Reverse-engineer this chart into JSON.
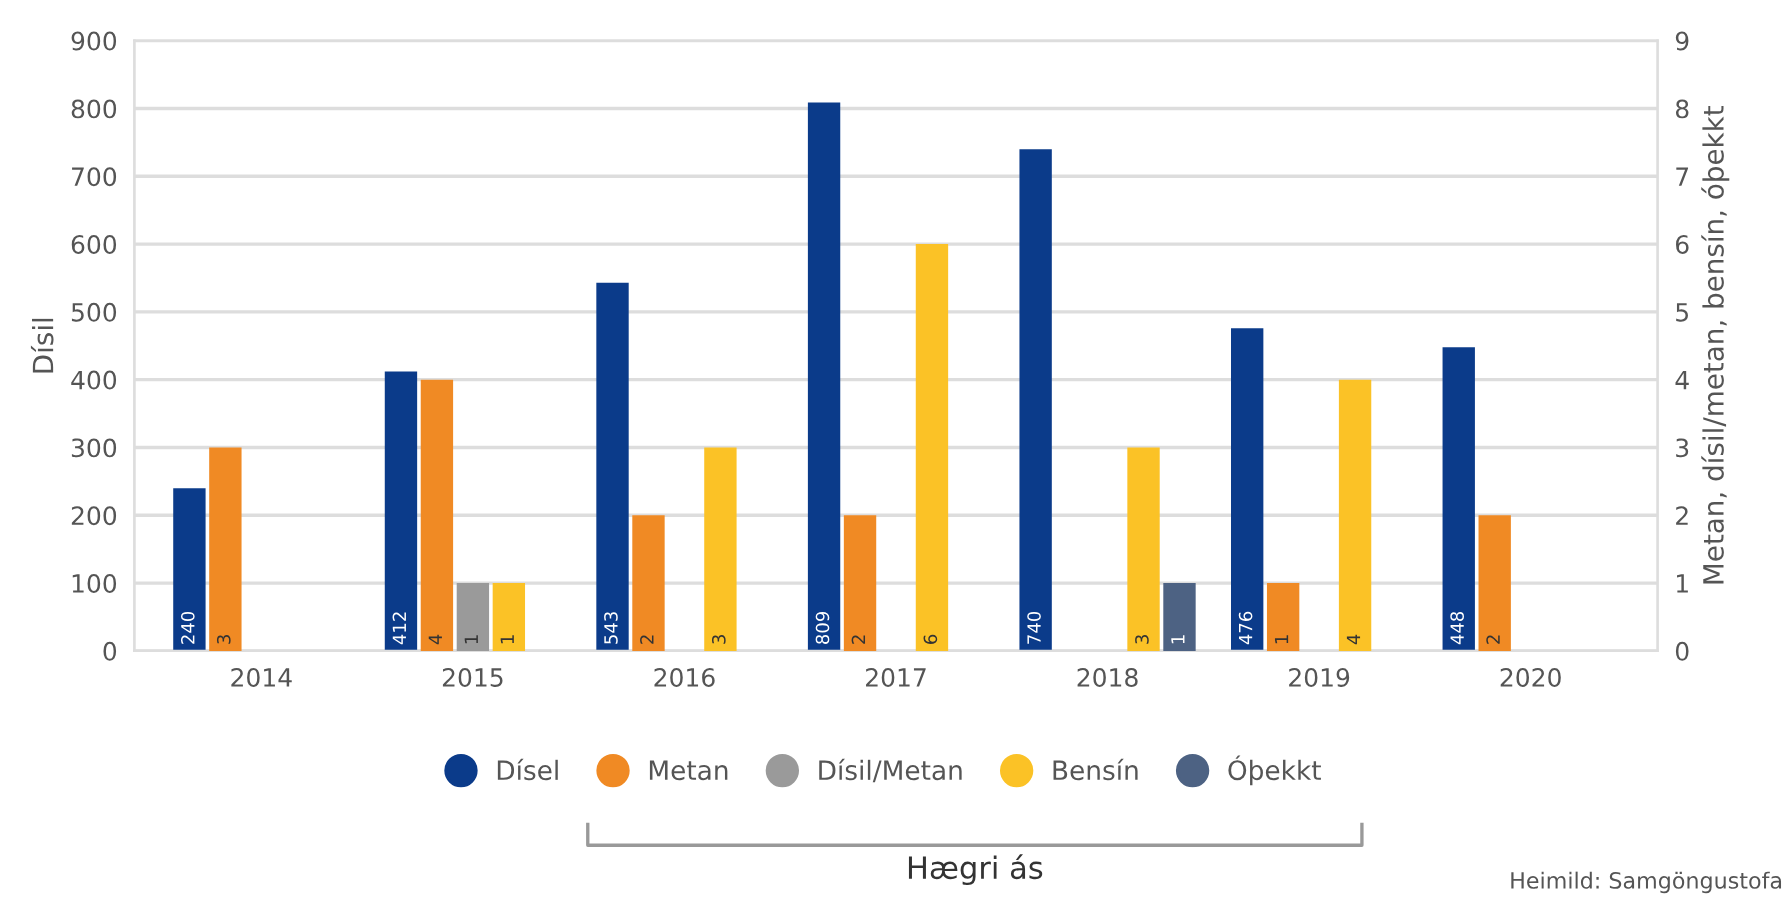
{
  "chart_data": {
    "type": "bar",
    "ylabel": "Dísil",
    "y2label": "Metan, dísil/metan, bensín, óþekkt",
    "categories": [
      "2014",
      "2015",
      "2016",
      "2017",
      "2018",
      "2019",
      "2020"
    ],
    "series": [
      {
        "name": "Dísel",
        "color": "#0b3b8a",
        "values": [
          240,
          412,
          543,
          809,
          740,
          476,
          448
        ]
      },
      {
        "name": "Metan",
        "color": "#f08a24",
        "axis": "y2",
        "values": [
          3,
          4,
          2,
          2,
          null,
          1,
          2
        ]
      },
      {
        "name": "Dísil/Metan",
        "color": "#9a9a9a",
        "axis": "y2",
        "values": [
          null,
          1,
          null,
          null,
          null,
          null,
          null
        ]
      },
      {
        "name": "Bensín",
        "color": "#fbc226",
        "axis": "y2",
        "values": [
          null,
          1,
          3,
          6,
          3,
          4,
          null
        ]
      },
      {
        "name": "Óþekkt",
        "color": "#4d6283",
        "axis": "y2",
        "values": [
          null,
          null,
          null,
          null,
          1,
          null,
          null
        ]
      }
    ],
    "ylim": [
      0,
      900
    ],
    "yticks": [
      0,
      100,
      200,
      300,
      400,
      500,
      600,
      700,
      800,
      900
    ],
    "y2lim": [
      0,
      9
    ],
    "y2ticks": [
      0,
      1,
      2,
      3,
      4,
      5,
      6,
      7,
      8,
      9
    ],
    "grid": "y",
    "legend": "bottom",
    "data_labels": true,
    "annotations": [
      "Hægri ás",
      "Heimild: Samgöngustofa"
    ]
  }
}
